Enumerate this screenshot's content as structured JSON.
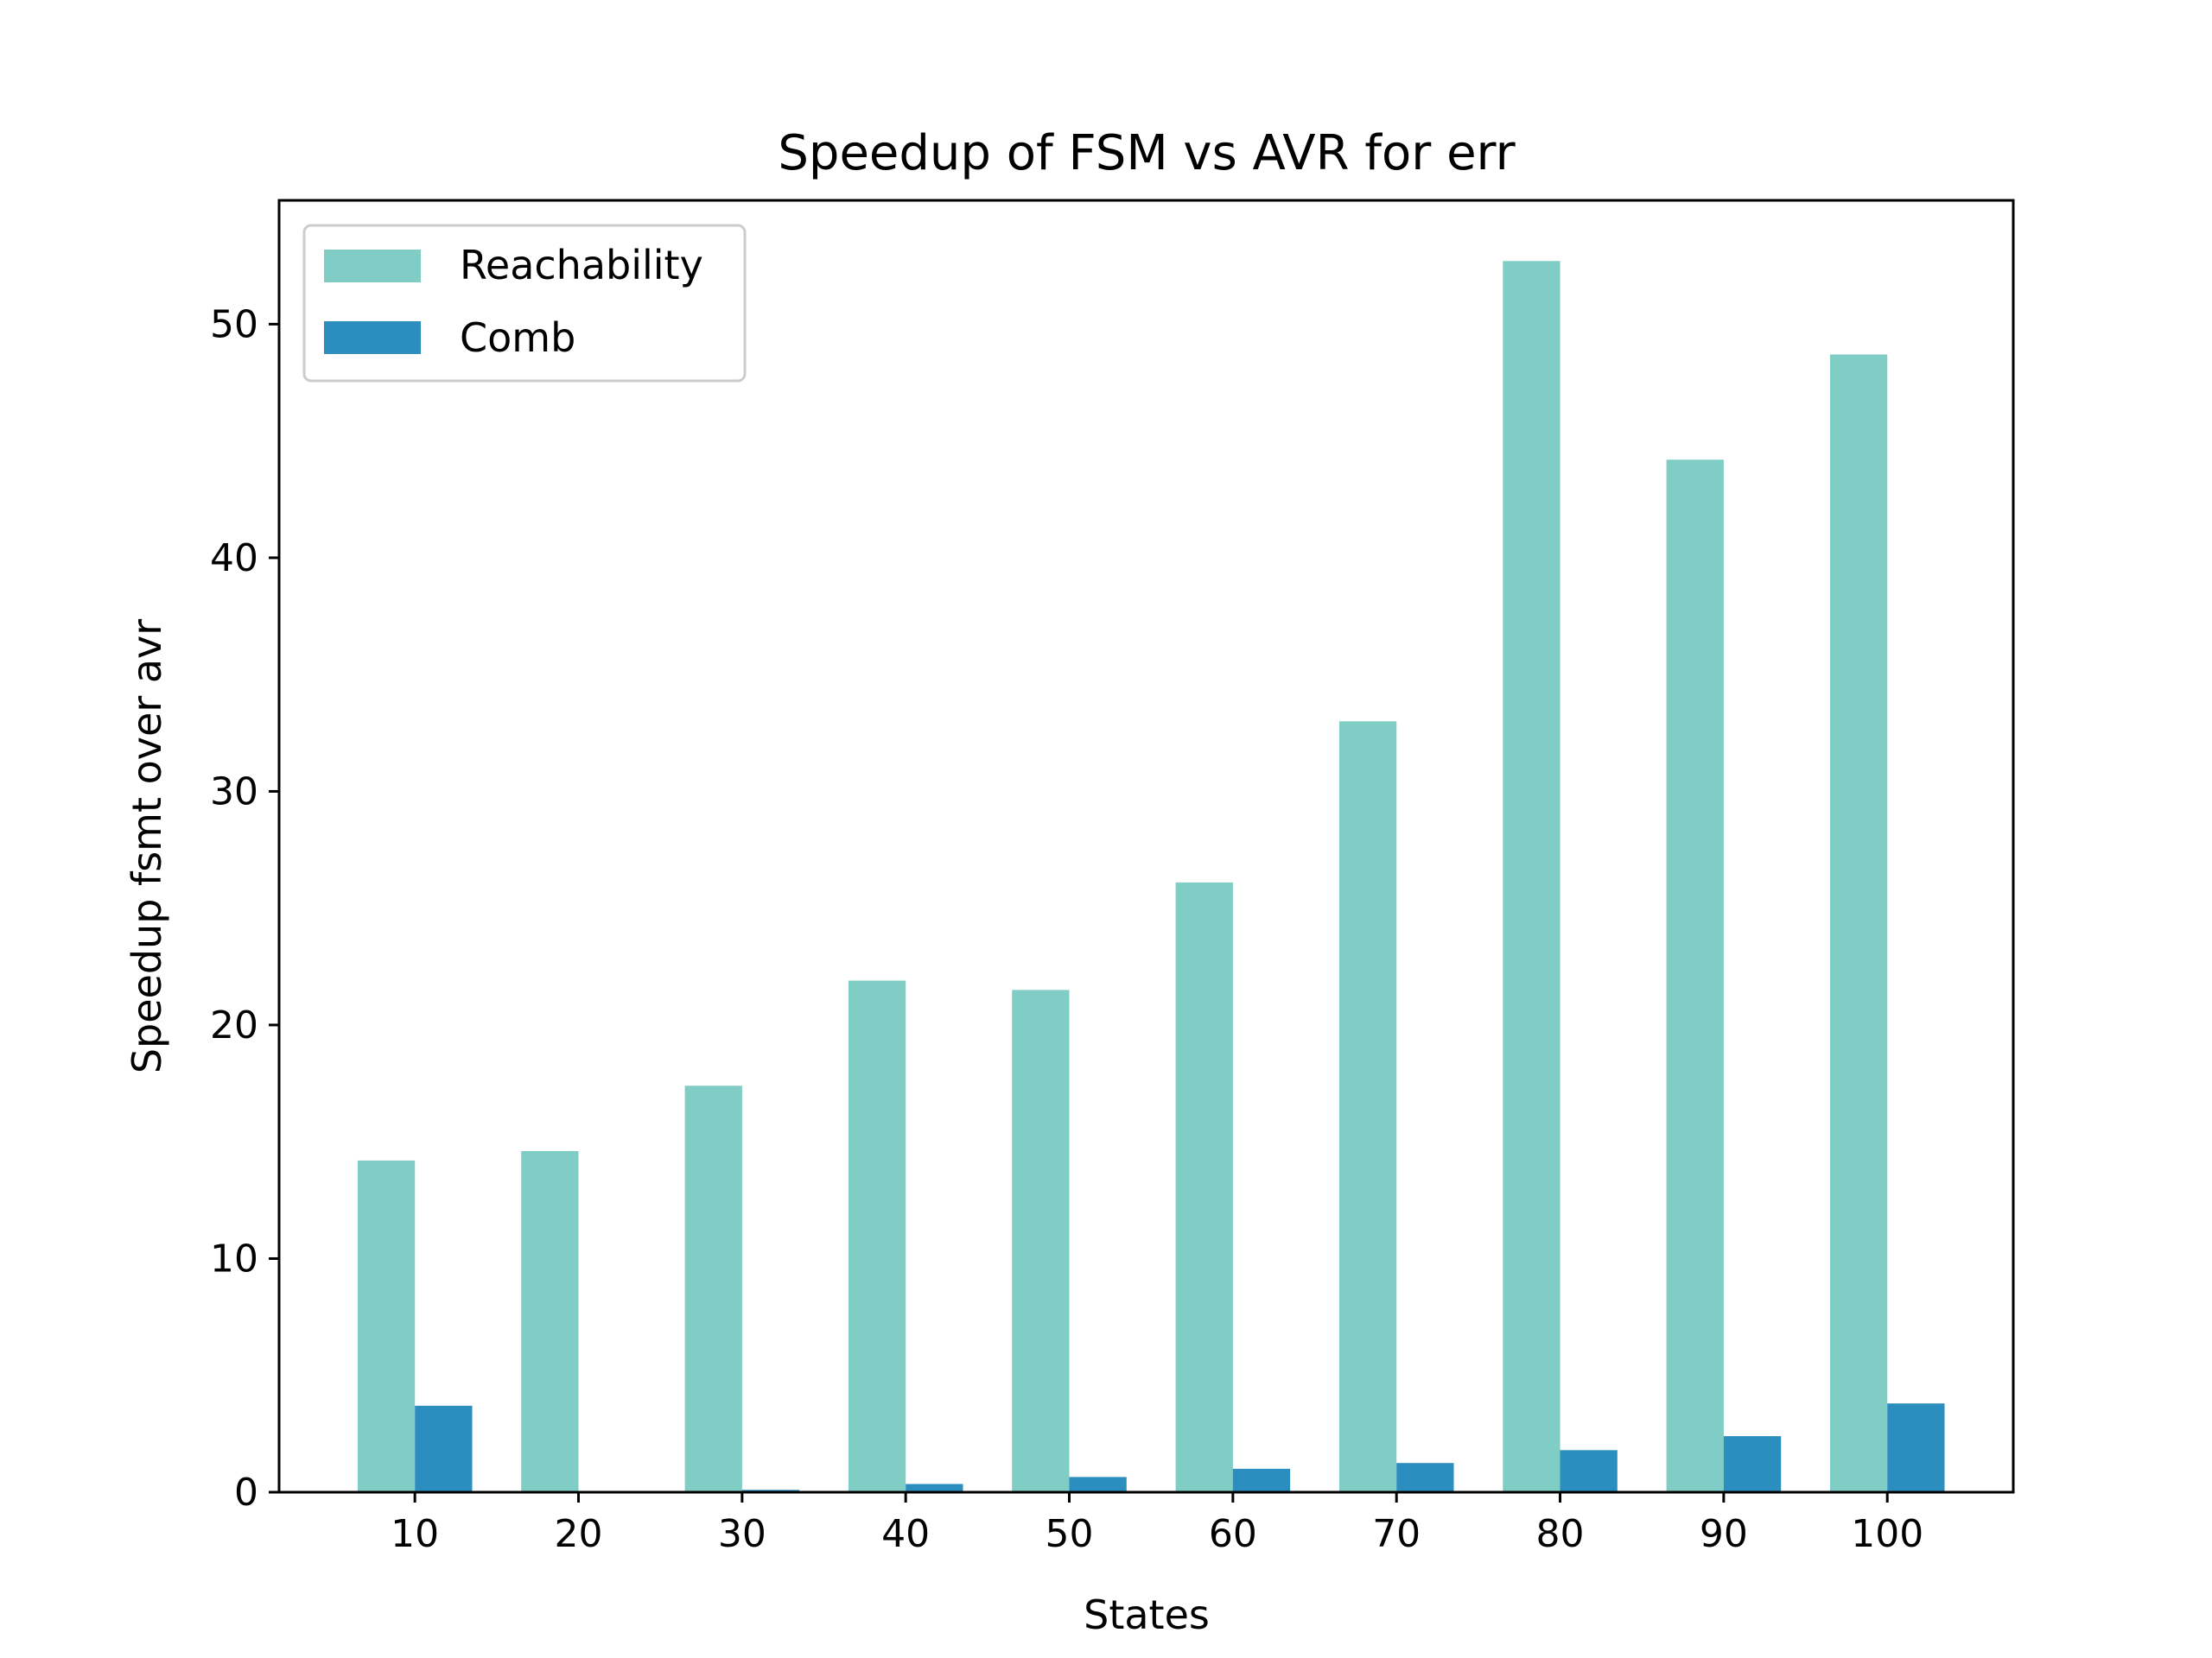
{
  "chart_data": {
    "type": "bar",
    "title": "Speedup of FSM vs AVR for err",
    "xlabel": "States",
    "ylabel": "Speedup fsmt over avr",
    "categories": [
      "10",
      "20",
      "30",
      "40",
      "50",
      "60",
      "70",
      "80",
      "90",
      "100"
    ],
    "series": [
      {
        "name": "Reachability",
        "color": "#7fcdc4",
        "values": [
          14.2,
          14.6,
          17.4,
          21.9,
          21.5,
          26.1,
          33.0,
          52.7,
          44.2,
          48.7
        ]
      },
      {
        "name": "Comb",
        "color": "#2c8ebf",
        "values": [
          3.7,
          0.0,
          0.1,
          0.35,
          0.65,
          1.0,
          1.25,
          1.8,
          2.4,
          3.8
        ]
      }
    ],
    "ylim": [
      0,
      55.3
    ],
    "yticks": [
      0,
      10,
      20,
      30,
      40,
      50
    ],
    "grid": false,
    "legend_position": "top-left"
  }
}
